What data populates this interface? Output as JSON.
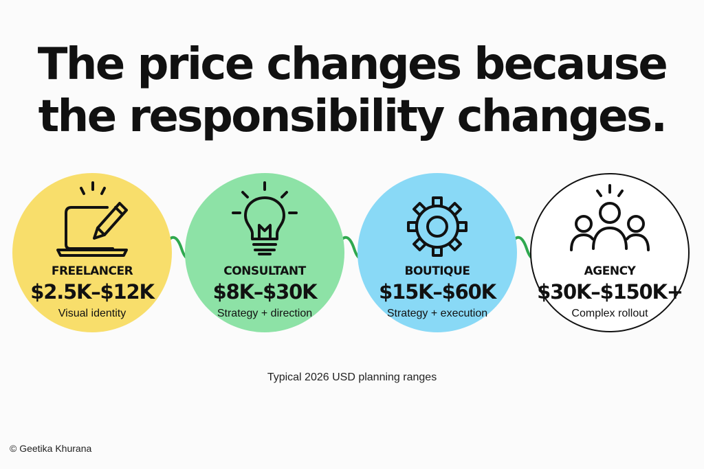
{
  "headline": {
    "line1": "The price changes because",
    "line2": "the responsibility changes."
  },
  "stages": [
    {
      "name": "FREELANCER",
      "price": "$2.5K–$12K",
      "description": "Visual identity",
      "icon": "laptop-pencil-icon",
      "color": "#f8de6b"
    },
    {
      "name": "CONSULTANT",
      "price": "$8K–$30K",
      "description": "Strategy + direction",
      "icon": "lightbulb-icon",
      "color": "#8de2a6"
    },
    {
      "name": "BOUTIQUE",
      "price": "$15K–$60K",
      "description": "Strategy + execution",
      "icon": "gear-icon",
      "color": "#89d9f6"
    },
    {
      "name": "AGENCY",
      "price": "$30K–$150K+",
      "description": "Complex rollout",
      "icon": "team-icon",
      "color": "#ffffff"
    }
  ],
  "connector_color": "#2fa84f",
  "caption": "Typical 2026 USD planning ranges",
  "credit": "© Geetika Khurana"
}
